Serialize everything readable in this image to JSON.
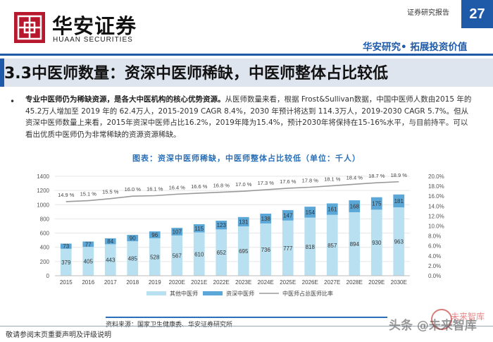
{
  "header": {
    "logo_cn": "华安证券",
    "logo_en": "HUAAN SECURITIES",
    "report_type": "证券研究报告",
    "page_number": "27",
    "tagline": "华安研究• 拓展投资价值"
  },
  "section_title": "3.3中医师数量：资深中医师稀缺，中医师整体占比较低",
  "body": {
    "bullet": "•",
    "lead_bold": "专业中医师仍为稀缺资源，是各大中医机构的核心优势资源。",
    "text": "从医师数量来看，根据 Frost&Sullivan数据，中国中医师人数由2015 年的45.2万人增加至 2019 年的 62.4万人，2015-2019 CAGR 8.4%，2030 年预计将达到 114.3万人，2019-2030 CAGR 5.7%。但从资深中医师数量上来看，2015年资深中医师占比16.2%，2019年降为15.4%，预计2030年将保持在15-16%水平，与目前持平。可以看出优质中医师仍为非常稀缺的资源资源稀缺。"
  },
  "chart_title": "图表：资深中医师稀缺，中医师整体占比较低（单位：千人）",
  "chart_data": {
    "type": "bar",
    "categories": [
      "2015",
      "2016",
      "2017",
      "2018",
      "2019",
      "2020E",
      "2021E",
      "2022E",
      "2023E",
      "2024E",
      "2025E",
      "2026E",
      "2027E",
      "2028E",
      "2029E",
      "2030E"
    ],
    "series": [
      {
        "name": "其他中医师",
        "type": "stacked-bar",
        "values": [
          379,
          405,
          443,
          485,
          528,
          567,
          610,
          652,
          695,
          736,
          777,
          818,
          857,
          894,
          930,
          963
        ]
      },
      {
        "name": "资深中医师",
        "type": "stacked-bar",
        "values": [
          73,
          77,
          84,
          90,
          96,
          107,
          115,
          123,
          131,
          138,
          147,
          154,
          161,
          168,
          175,
          181
        ]
      },
      {
        "name": "中医师占总医师比率",
        "type": "line",
        "axis": "right",
        "values": [
          14.9,
          15.1,
          15.5,
          16.0,
          16.1,
          16.4,
          16.6,
          16.8,
          17.0,
          17.3,
          17.6,
          17.8,
          18.1,
          18.4,
          18.7,
          18.9
        ]
      }
    ],
    "line_labels": [
      "14.9 %",
      "15.1 %",
      "15.5 %",
      "16.0 %",
      "16.1 %",
      "16.4 %",
      "16.6 %",
      "16.8 %",
      "17.0 %",
      "17.3 %",
      "17.6 %",
      "17.8 %",
      "18.1 %",
      "18.4 %",
      "18.7 %",
      "18.9 %"
    ],
    "ylim": [
      0,
      1400
    ],
    "y2lim": [
      0,
      20
    ],
    "yticks": [
      "0",
      "200",
      "400",
      "600",
      "800",
      "1000",
      "1200",
      "1400"
    ],
    "y2ticks": [
      "0.0%",
      "2.0%",
      "4.0%",
      "6.0%",
      "8.0%",
      "10.0%",
      "12.0%",
      "14.0%",
      "16.0%",
      "18.0%",
      "20.0%"
    ],
    "legend": [
      "其他中医师",
      "资深中医师",
      "中医师占总医师比率"
    ],
    "colors": {
      "other": "#b9e0f0",
      "senior": "#5ba8d8",
      "line": "#9a9a9a"
    }
  },
  "source": "资料来源：国家卫生健康委、华安证券研究所",
  "footer": "敬请参阅末页重要声明及评级说明",
  "watermark": "头条 @未来智库",
  "watermark_overlay": "未来智库"
}
